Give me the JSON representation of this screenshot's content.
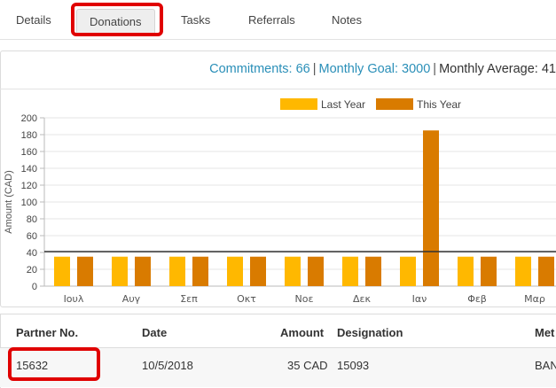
{
  "tabs": [
    {
      "label": "Details"
    },
    {
      "label": "Donations",
      "active": true
    },
    {
      "label": "Tasks"
    },
    {
      "label": "Referrals"
    },
    {
      "label": "Notes"
    }
  ],
  "summary": {
    "commitments": "Commitments: 66",
    "monthly_goal": "Monthly Goal: 3000",
    "monthly_average": "Monthly Average: 41",
    "separator": "|"
  },
  "colors": {
    "last_year": "#ffb800",
    "this_year": "#d97b00",
    "summary_blue": "#2a8fb8",
    "highlight": "#e00000",
    "average_line": "#333333"
  },
  "chart_data": {
    "type": "bar",
    "ylabel": "Amount (CAD)",
    "ylim": [
      0,
      200
    ],
    "yticks": [
      "0",
      "20",
      "40",
      "60",
      "80",
      "100",
      "120",
      "140",
      "160",
      "180",
      "200"
    ],
    "categories": [
      "Ιουλ",
      "Αυγ",
      "Σεπ",
      "Οκτ",
      "Νοε",
      "Δεκ",
      "Ιαν",
      "Φεβ",
      "Μαρ"
    ],
    "series": [
      {
        "name": "Last Year",
        "values": [
          35,
          35,
          35,
          35,
          35,
          35,
          35,
          35,
          35
        ]
      },
      {
        "name": "This Year",
        "values": [
          35,
          35,
          35,
          35,
          35,
          35,
          185,
          35,
          35
        ]
      }
    ],
    "average_line": 41,
    "legend_position": "top-right",
    "grid": true
  },
  "table": {
    "headers": [
      "Partner No.",
      "Date",
      "Amount",
      "Designation",
      "Met"
    ],
    "rows": [
      [
        "15632",
        "10/5/2018",
        "35 CAD",
        "15093",
        "BAN"
      ]
    ]
  }
}
